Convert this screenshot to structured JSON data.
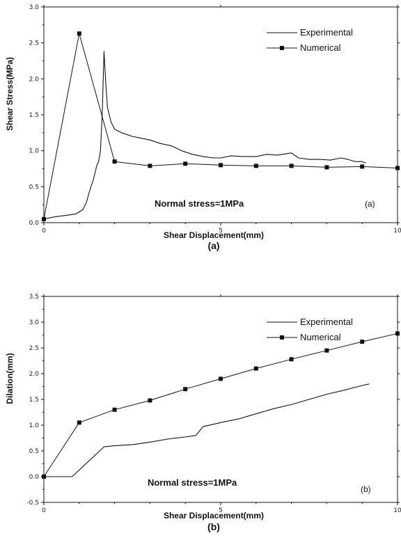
{
  "chart_data": [
    {
      "type": "line",
      "caption": "(a)",
      "panel_label": "(a)",
      "annotation": "Normal stress=1MPa",
      "xlabel": "Shear Displacement(mm)",
      "ylabel": "Shear Stress(MPa)",
      "xlim": [
        0,
        10
      ],
      "ylim": [
        0,
        3.0
      ],
      "xticks": [
        0,
        5,
        10
      ],
      "xtick_labels": [
        "0",
        "5",
        "10"
      ],
      "yticks": [
        0.0,
        0.5,
        1.0,
        1.5,
        2.0,
        2.5,
        3.0
      ],
      "ytick_labels": [
        "0.0",
        "0.5",
        "1.0",
        "1.5",
        "2.0",
        "2.5",
        "3.0"
      ],
      "legend_position": "top-right",
      "series": [
        {
          "name": "Experimental",
          "marker": "none",
          "x": [
            0,
            0.3,
            0.6,
            0.9,
            1.1,
            1.2,
            1.3,
            1.4,
            1.5,
            1.55,
            1.6,
            1.65,
            1.7,
            1.75,
            1.8,
            1.9,
            2.0,
            2.2,
            2.5,
            2.8,
            3.0,
            3.3,
            3.6,
            3.9,
            4.2,
            4.5,
            4.8,
            5.0,
            5.3,
            5.6,
            6.0,
            6.3,
            6.6,
            7.0,
            7.2,
            7.5,
            7.8,
            8.1,
            8.4,
            8.6,
            8.8,
            9.0,
            9.1
          ],
          "y": [
            0.05,
            0.08,
            0.1,
            0.12,
            0.18,
            0.28,
            0.45,
            0.6,
            0.8,
            0.85,
            1.0,
            1.5,
            2.38,
            1.95,
            1.6,
            1.4,
            1.3,
            1.25,
            1.2,
            1.17,
            1.15,
            1.1,
            1.07,
            1.0,
            0.95,
            0.92,
            0.9,
            0.9,
            0.93,
            0.92,
            0.92,
            0.95,
            0.94,
            0.97,
            0.9,
            0.88,
            0.88,
            0.87,
            0.9,
            0.88,
            0.85,
            0.85,
            0.83
          ]
        },
        {
          "name": "Numerical",
          "marker": "square",
          "x": [
            0,
            1,
            2,
            3,
            4,
            5,
            6,
            7,
            8,
            9,
            10
          ],
          "y": [
            0.05,
            2.63,
            0.85,
            0.79,
            0.82,
            0.8,
            0.79,
            0.79,
            0.77,
            0.78,
            0.76
          ]
        }
      ]
    },
    {
      "type": "line",
      "caption": "(b)",
      "panel_label": "(b)",
      "annotation": "Normal stress=1MPa",
      "xlabel": "Shear Displacement(mm)",
      "ylabel": "Dilation(mm)",
      "xlim": [
        0,
        10
      ],
      "ylim": [
        -0.5,
        3.5
      ],
      "xticks": [
        0,
        5,
        10
      ],
      "xtick_labels": [
        "0",
        "5",
        "10"
      ],
      "yticks": [
        -0.5,
        0.0,
        0.5,
        1.0,
        1.5,
        2.0,
        2.5,
        3.0,
        3.5
      ],
      "ytick_labels": [
        "-0.5",
        "0.0",
        "0.5",
        "1.0",
        "1.5",
        "2.0",
        "2.5",
        "3.0",
        "3.5"
      ],
      "legend_position": "top-right",
      "series": [
        {
          "name": "Experimental",
          "marker": "none",
          "x": [
            0,
            0.8,
            1.7,
            2.0,
            2.5,
            3.0,
            3.5,
            4.0,
            4.3,
            4.5,
            5.0,
            5.5,
            6.0,
            6.5,
            7.0,
            7.5,
            8.0,
            8.5,
            9.0,
            9.2
          ],
          "y": [
            0,
            0,
            0.58,
            0.6,
            0.62,
            0.67,
            0.73,
            0.77,
            0.8,
            0.97,
            1.05,
            1.12,
            1.22,
            1.32,
            1.4,
            1.5,
            1.6,
            1.68,
            1.77,
            1.8
          ]
        },
        {
          "name": "Numerical",
          "marker": "square",
          "x": [
            0,
            1,
            2,
            3,
            4,
            5,
            6,
            7,
            8,
            9,
            10
          ],
          "y": [
            0,
            1.05,
            1.3,
            1.48,
            1.7,
            1.9,
            2.1,
            2.28,
            2.45,
            2.62,
            2.78
          ]
        }
      ]
    }
  ]
}
